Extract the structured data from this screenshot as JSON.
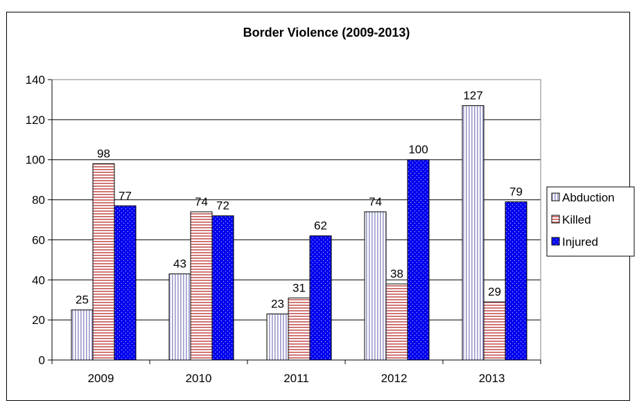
{
  "chart_data": {
    "type": "bar",
    "title": "Border Violence (2009-2013)",
    "xlabel": "",
    "ylabel": "",
    "categories": [
      "2009",
      "2010",
      "2011",
      "2012",
      "2013"
    ],
    "ylim": [
      0,
      140
    ],
    "yticks": [
      0,
      20,
      40,
      60,
      80,
      100,
      120,
      140
    ],
    "grid": true,
    "legend_position": "right",
    "series": [
      {
        "name": "Abduction",
        "values": [
          25,
          43,
          23,
          74,
          127
        ],
        "color": "#ffffff",
        "pattern_color": "#9999cc",
        "pattern": "vertical-stripes"
      },
      {
        "name": "Killed",
        "values": [
          98,
          74,
          31,
          38,
          29
        ],
        "color": "#ffffff",
        "pattern_color": "#cc6666",
        "pattern": "horizontal-stripes"
      },
      {
        "name": "Injured",
        "values": [
          77,
          72,
          62,
          100,
          79
        ],
        "color": "#0000ee",
        "pattern_color": "#9999ff",
        "pattern": "dots"
      }
    ]
  }
}
